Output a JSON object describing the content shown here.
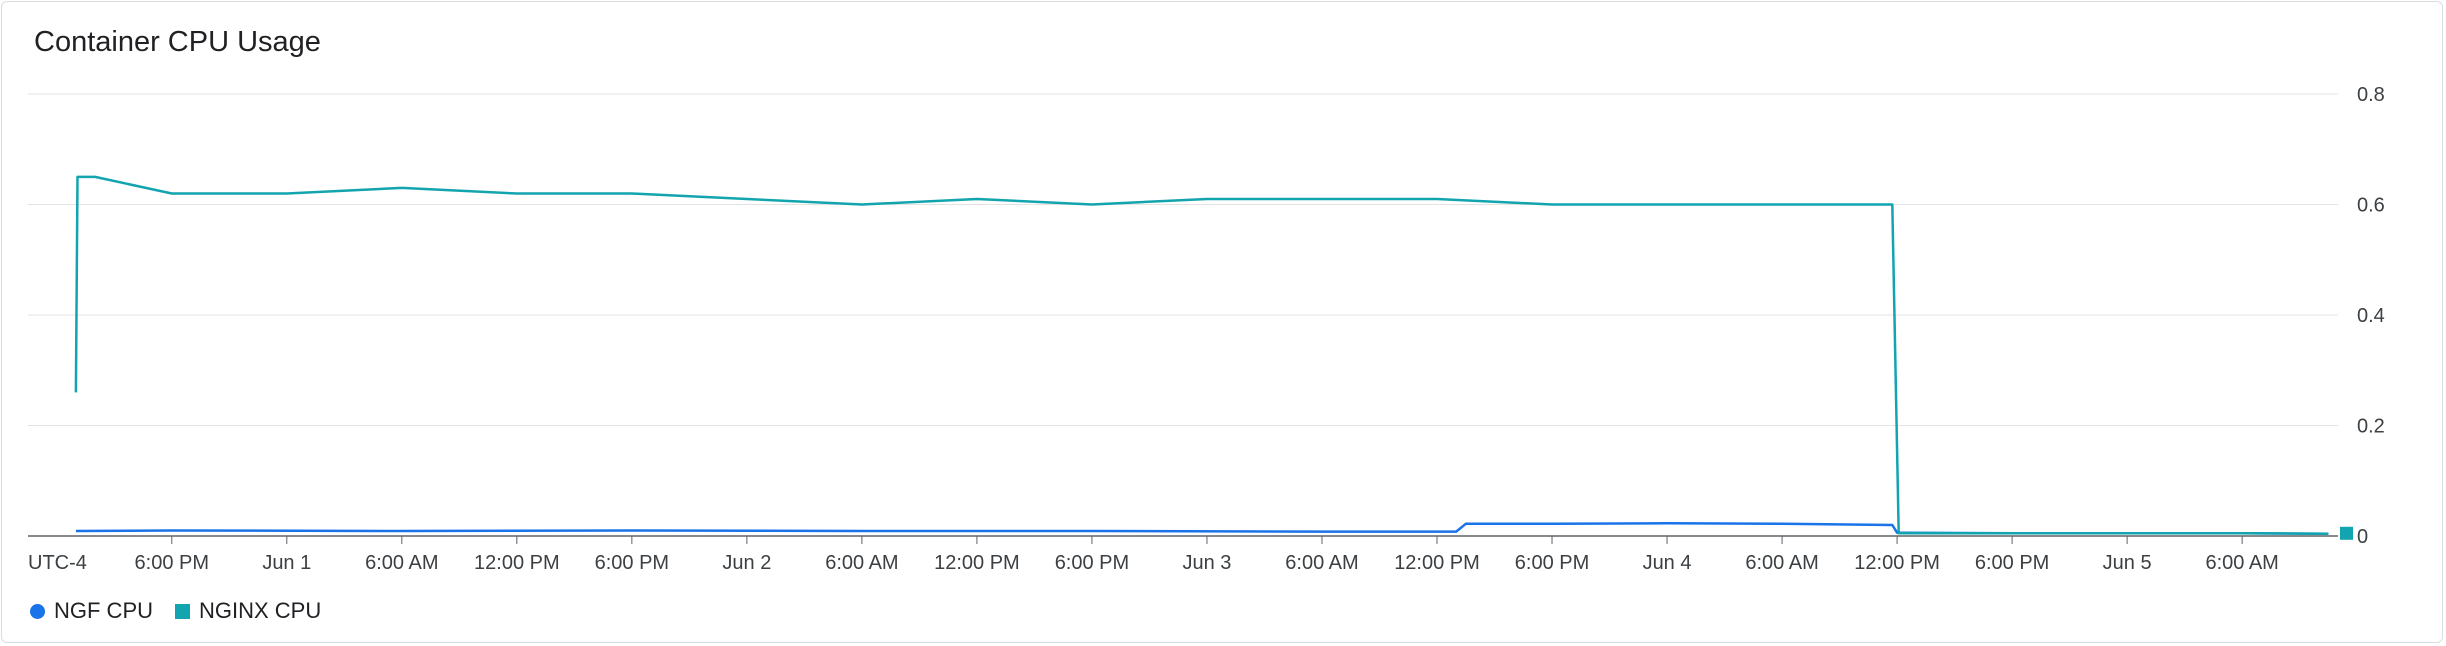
{
  "chart_data": {
    "type": "line",
    "title": "Container CPU Usage",
    "xlabel": "",
    "ylabel": "",
    "timezone_label": "UTC-4",
    "x_range": [
      "2024-05-31T10:30",
      "2024-06-05T11:00"
    ],
    "x_ticks": [
      {
        "t": "2024-05-31T18:00",
        "label": "6:00 PM"
      },
      {
        "t": "2024-06-01T00:00",
        "label": "Jun 1"
      },
      {
        "t": "2024-06-01T06:00",
        "label": "6:00 AM"
      },
      {
        "t": "2024-06-01T12:00",
        "label": "12:00 PM"
      },
      {
        "t": "2024-06-01T18:00",
        "label": "6:00 PM"
      },
      {
        "t": "2024-06-02T00:00",
        "label": "Jun 2"
      },
      {
        "t": "2024-06-02T06:00",
        "label": "6:00 AM"
      },
      {
        "t": "2024-06-02T12:00",
        "label": "12:00 PM"
      },
      {
        "t": "2024-06-02T18:00",
        "label": "6:00 PM"
      },
      {
        "t": "2024-06-03T00:00",
        "label": "Jun 3"
      },
      {
        "t": "2024-06-03T06:00",
        "label": "6:00 AM"
      },
      {
        "t": "2024-06-03T12:00",
        "label": "12:00 PM"
      },
      {
        "t": "2024-06-03T18:00",
        "label": "6:00 PM"
      },
      {
        "t": "2024-06-04T00:00",
        "label": "Jun 4"
      },
      {
        "t": "2024-06-04T06:00",
        "label": "6:00 AM"
      },
      {
        "t": "2024-06-04T12:00",
        "label": "12:00 PM"
      },
      {
        "t": "2024-06-04T18:00",
        "label": "6:00 PM"
      },
      {
        "t": "2024-06-05T00:00",
        "label": "Jun 5"
      },
      {
        "t": "2024-06-05T06:00",
        "label": "6:00 AM"
      }
    ],
    "ylim": [
      0,
      0.8
    ],
    "y_ticks": [
      {
        "v": 0,
        "label": "0"
      },
      {
        "v": 0.2,
        "label": "0.2"
      },
      {
        "v": 0.4,
        "label": "0.4"
      },
      {
        "v": 0.6,
        "label": "0.6"
      },
      {
        "v": 0.8,
        "label": "0.8"
      }
    ],
    "y_axis_side": "right",
    "grid": true,
    "legend_position": "bottom-left",
    "series": [
      {
        "name": "NGF CPU",
        "color": "#1a73e8",
        "marker": "circle",
        "points": [
          [
            "2024-05-31T13:00",
            0.009
          ],
          [
            "2024-05-31T18:00",
            0.01
          ],
          [
            "2024-06-01T06:00",
            0.009
          ],
          [
            "2024-06-01T18:00",
            0.01
          ],
          [
            "2024-06-02T06:00",
            0.009
          ],
          [
            "2024-06-02T18:00",
            0.009
          ],
          [
            "2024-06-03T06:00",
            0.008
          ],
          [
            "2024-06-03T12:00",
            0.008
          ],
          [
            "2024-06-03T13:00",
            0.008
          ],
          [
            "2024-06-03T13:30",
            0.022
          ],
          [
            "2024-06-03T18:00",
            0.022
          ],
          [
            "2024-06-04T00:00",
            0.023
          ],
          [
            "2024-06-04T06:00",
            0.022
          ],
          [
            "2024-06-04T11:45",
            0.02
          ],
          [
            "2024-06-04T12:00",
            0.006
          ],
          [
            "2024-06-04T18:00",
            0.005
          ],
          [
            "2024-06-05T00:00",
            0.005
          ],
          [
            "2024-06-05T06:00",
            0.005
          ],
          [
            "2024-06-05T10:30",
            0.004
          ]
        ]
      },
      {
        "name": "NGINX CPU",
        "color": "#12a4af",
        "marker": "square",
        "points": [
          [
            "2024-05-31T13:00",
            0.26
          ],
          [
            "2024-05-31T13:05",
            0.65
          ],
          [
            "2024-05-31T14:00",
            0.65
          ],
          [
            "2024-05-31T18:00",
            0.62
          ],
          [
            "2024-06-01T00:00",
            0.62
          ],
          [
            "2024-06-01T06:00",
            0.63
          ],
          [
            "2024-06-01T12:00",
            0.62
          ],
          [
            "2024-06-01T18:00",
            0.62
          ],
          [
            "2024-06-02T00:00",
            0.61
          ],
          [
            "2024-06-02T06:00",
            0.6
          ],
          [
            "2024-06-02T12:00",
            0.61
          ],
          [
            "2024-06-02T18:00",
            0.6
          ],
          [
            "2024-06-03T00:00",
            0.61
          ],
          [
            "2024-06-03T06:00",
            0.61
          ],
          [
            "2024-06-03T12:00",
            0.61
          ],
          [
            "2024-06-03T18:00",
            0.6
          ],
          [
            "2024-06-04T00:00",
            0.6
          ],
          [
            "2024-06-04T06:00",
            0.6
          ],
          [
            "2024-06-04T11:45",
            0.6
          ],
          [
            "2024-06-04T12:05",
            0.005
          ],
          [
            "2024-06-04T18:00",
            0.005
          ],
          [
            "2024-06-05T00:00",
            0.005
          ],
          [
            "2024-06-05T06:00",
            0.005
          ],
          [
            "2024-06-05T10:30",
            0.004
          ]
        ]
      }
    ]
  }
}
